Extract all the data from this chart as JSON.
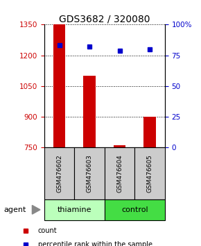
{
  "title": "GDS3682 / 320080",
  "samples": [
    "GSM476602",
    "GSM476603",
    "GSM476604",
    "GSM476605"
  ],
  "bar_values": [
    1350,
    1100,
    760,
    900
  ],
  "percentile_values": [
    83,
    82,
    79,
    80
  ],
  "ylim_left": [
    750,
    1350
  ],
  "ylim_right": [
    0,
    100
  ],
  "yticks_left": [
    750,
    900,
    1050,
    1200,
    1350
  ],
  "yticks_right": [
    0,
    25,
    50,
    75,
    100
  ],
  "bar_color": "#cc0000",
  "dot_color": "#0000cc",
  "bar_bottom": 750,
  "groups": [
    {
      "label": "thiamine",
      "indices": [
        0,
        1
      ],
      "color": "#bbffbb"
    },
    {
      "label": "control",
      "indices": [
        2,
        3
      ],
      "color": "#44dd44"
    }
  ],
  "sample_box_color": "#cccccc",
  "agent_label": "agent",
  "legend_items": [
    {
      "label": "count",
      "color": "#cc0000"
    },
    {
      "label": "percentile rank within the sample",
      "color": "#0000cc"
    }
  ],
  "background_color": "#ffffff",
  "title_fontsize": 10,
  "tick_fontsize": 7.5
}
